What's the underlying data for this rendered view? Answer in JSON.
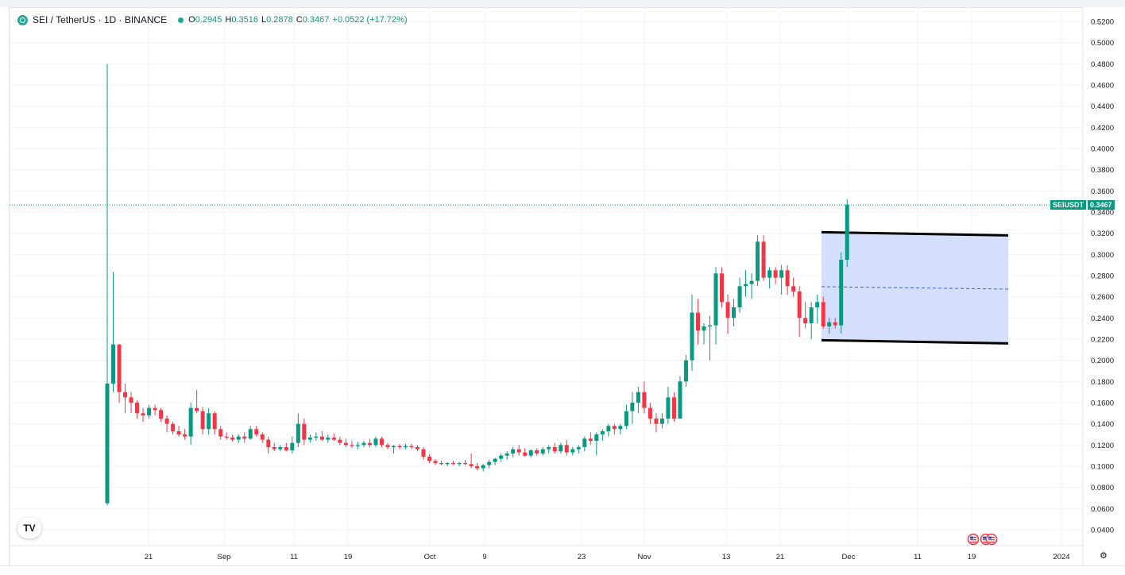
{
  "legend": {
    "symbol": "SEI / TetherUS · 1D · BINANCE",
    "o_label": "O",
    "o": "0.2945",
    "h_label": "H",
    "h": "0.3516",
    "l_label": "L",
    "l": "0.2878",
    "c_label": "C",
    "c": "0.3467",
    "change": "+0.0522 (+17.72%)"
  },
  "price_tag": {
    "symbol": "SEIUSDT",
    "value": "0.3467"
  },
  "logo_text": "TV",
  "colors": {
    "up": "#089981",
    "down": "#f23645",
    "box": "#c9d7fb",
    "grid": "#f0f3fa"
  },
  "chart_data": {
    "type": "candlestick",
    "y_axis": {
      "ticks": [
        "0.5200",
        "0.5000",
        "0.4800",
        "0.4600",
        "0.4400",
        "0.4200",
        "0.4000",
        "0.3800",
        "0.3600",
        "0.3400",
        "0.3200",
        "0.3000",
        "0.2800",
        "0.2600",
        "0.2400",
        "0.2200",
        "0.2000",
        "0.1800",
        "0.1600",
        "0.1400",
        "0.1200",
        "0.1000",
        "0.0800",
        "0.0600",
        "0.0400"
      ],
      "range": [
        0.03,
        0.53
      ]
    },
    "x_axis": {
      "labels": [
        "21",
        "Sep",
        "11",
        "19",
        "Oct",
        "9",
        "23",
        "Nov",
        "13",
        "21",
        "Dec",
        "11",
        "19",
        "2024"
      ]
    },
    "current_price": 0.3467,
    "candles": [
      [
        0.065,
        0.48,
        0.063,
        0.178
      ],
      [
        0.178,
        0.283,
        0.17,
        0.215
      ],
      [
        0.215,
        0.215,
        0.16,
        0.17
      ],
      [
        0.17,
        0.178,
        0.15,
        0.165
      ],
      [
        0.165,
        0.17,
        0.15,
        0.16
      ],
      [
        0.16,
        0.162,
        0.145,
        0.15
      ],
      [
        0.15,
        0.155,
        0.142,
        0.148
      ],
      [
        0.148,
        0.158,
        0.145,
        0.155
      ],
      [
        0.155,
        0.158,
        0.148,
        0.153
      ],
      [
        0.153,
        0.155,
        0.142,
        0.145
      ],
      [
        0.145,
        0.148,
        0.132,
        0.14
      ],
      [
        0.14,
        0.142,
        0.13,
        0.133
      ],
      [
        0.133,
        0.138,
        0.128,
        0.13
      ],
      [
        0.13,
        0.135,
        0.125,
        0.128
      ],
      [
        0.128,
        0.16,
        0.12,
        0.155
      ],
      [
        0.155,
        0.172,
        0.15,
        0.152
      ],
      [
        0.152,
        0.156,
        0.13,
        0.135
      ],
      [
        0.135,
        0.155,
        0.13,
        0.15
      ],
      [
        0.15,
        0.152,
        0.13,
        0.135
      ],
      [
        0.135,
        0.138,
        0.125,
        0.128
      ],
      [
        0.128,
        0.132,
        0.125,
        0.127
      ],
      [
        0.127,
        0.13,
        0.123,
        0.125
      ],
      [
        0.125,
        0.13,
        0.122,
        0.128
      ],
      [
        0.128,
        0.132,
        0.122,
        0.126
      ],
      [
        0.126,
        0.138,
        0.125,
        0.135
      ],
      [
        0.135,
        0.138,
        0.128,
        0.13
      ],
      [
        0.13,
        0.132,
        0.122,
        0.125
      ],
      [
        0.125,
        0.128,
        0.112,
        0.118
      ],
      [
        0.118,
        0.122,
        0.114,
        0.116
      ],
      [
        0.116,
        0.12,
        0.114,
        0.118
      ],
      [
        0.118,
        0.122,
        0.114,
        0.115
      ],
      [
        0.115,
        0.128,
        0.112,
        0.122
      ],
      [
        0.122,
        0.15,
        0.118,
        0.14
      ],
      [
        0.14,
        0.145,
        0.12,
        0.125
      ],
      [
        0.125,
        0.13,
        0.122,
        0.127
      ],
      [
        0.127,
        0.132,
        0.124,
        0.128
      ],
      [
        0.128,
        0.133,
        0.124,
        0.125
      ],
      [
        0.125,
        0.13,
        0.122,
        0.127
      ],
      [
        0.127,
        0.131,
        0.124,
        0.125
      ],
      [
        0.125,
        0.128,
        0.12,
        0.122
      ],
      [
        0.122,
        0.126,
        0.118,
        0.12
      ],
      [
        0.12,
        0.124,
        0.117,
        0.119
      ],
      [
        0.119,
        0.123,
        0.116,
        0.12
      ],
      [
        0.12,
        0.124,
        0.118,
        0.122
      ],
      [
        0.122,
        0.126,
        0.118,
        0.12
      ],
      [
        0.12,
        0.128,
        0.118,
        0.126
      ],
      [
        0.126,
        0.128,
        0.118,
        0.12
      ],
      [
        0.12,
        0.122,
        0.116,
        0.118
      ],
      [
        0.118,
        0.12,
        0.112,
        0.119
      ],
      [
        0.119,
        0.121,
        0.116,
        0.118
      ],
      [
        0.118,
        0.121,
        0.116,
        0.119
      ],
      [
        0.119,
        0.121,
        0.116,
        0.118
      ],
      [
        0.118,
        0.12,
        0.114,
        0.116
      ],
      [
        0.116,
        0.118,
        0.106,
        0.109
      ],
      [
        0.109,
        0.111,
        0.103,
        0.105
      ],
      [
        0.105,
        0.107,
        0.101,
        0.103
      ],
      [
        0.103,
        0.105,
        0.101,
        0.102
      ],
      [
        0.102,
        0.104,
        0.1,
        0.103
      ],
      [
        0.103,
        0.105,
        0.101,
        0.102
      ],
      [
        0.102,
        0.104,
        0.1,
        0.103
      ],
      [
        0.103,
        0.106,
        0.101,
        0.102
      ],
      [
        0.102,
        0.112,
        0.098,
        0.1
      ],
      [
        0.1,
        0.103,
        0.096,
        0.098
      ],
      [
        0.098,
        0.102,
        0.095,
        0.101
      ],
      [
        0.101,
        0.106,
        0.098,
        0.104
      ],
      [
        0.104,
        0.108,
        0.101,
        0.107
      ],
      [
        0.107,
        0.112,
        0.104,
        0.11
      ],
      [
        0.11,
        0.114,
        0.106,
        0.112
      ],
      [
        0.112,
        0.118,
        0.108,
        0.116
      ],
      [
        0.116,
        0.12,
        0.11,
        0.113
      ],
      [
        0.113,
        0.117,
        0.109,
        0.11
      ],
      [
        0.11,
        0.116,
        0.108,
        0.115
      ],
      [
        0.115,
        0.117,
        0.11,
        0.112
      ],
      [
        0.112,
        0.118,
        0.11,
        0.116
      ],
      [
        0.116,
        0.12,
        0.112,
        0.118
      ],
      [
        0.118,
        0.122,
        0.112,
        0.114
      ],
      [
        0.114,
        0.122,
        0.112,
        0.12
      ],
      [
        0.12,
        0.125,
        0.11,
        0.113
      ],
      [
        0.113,
        0.118,
        0.11,
        0.116
      ],
      [
        0.116,
        0.12,
        0.112,
        0.118
      ],
      [
        0.118,
        0.128,
        0.114,
        0.126
      ],
      [
        0.126,
        0.132,
        0.12,
        0.124
      ],
      [
        0.124,
        0.132,
        0.11,
        0.13
      ],
      [
        0.13,
        0.135,
        0.124,
        0.133
      ],
      [
        0.133,
        0.14,
        0.128,
        0.138
      ],
      [
        0.138,
        0.14,
        0.13,
        0.135
      ],
      [
        0.135,
        0.14,
        0.13,
        0.138
      ],
      [
        0.138,
        0.158,
        0.135,
        0.152
      ],
      [
        0.152,
        0.17,
        0.14,
        0.16
      ],
      [
        0.16,
        0.175,
        0.15,
        0.17
      ],
      [
        0.17,
        0.18,
        0.15,
        0.155
      ],
      [
        0.155,
        0.16,
        0.14,
        0.145
      ],
      [
        0.145,
        0.15,
        0.132,
        0.14
      ],
      [
        0.14,
        0.15,
        0.136,
        0.145
      ],
      [
        0.145,
        0.175,
        0.14,
        0.165
      ],
      [
        0.165,
        0.17,
        0.142,
        0.145
      ],
      [
        0.145,
        0.185,
        0.145,
        0.18
      ],
      [
        0.18,
        0.205,
        0.175,
        0.2
      ],
      [
        0.2,
        0.262,
        0.19,
        0.245
      ],
      [
        0.245,
        0.258,
        0.215,
        0.228
      ],
      [
        0.228,
        0.235,
        0.215,
        0.232
      ],
      [
        0.232,
        0.242,
        0.2,
        0.233
      ],
      [
        0.233,
        0.288,
        0.215,
        0.282
      ],
      [
        0.282,
        0.288,
        0.25,
        0.255
      ],
      [
        0.255,
        0.262,
        0.225,
        0.24
      ],
      [
        0.24,
        0.258,
        0.232,
        0.25
      ],
      [
        0.25,
        0.278,
        0.245,
        0.27
      ],
      [
        0.27,
        0.285,
        0.26,
        0.272
      ],
      [
        0.272,
        0.282,
        0.258,
        0.275
      ],
      [
        0.275,
        0.318,
        0.27,
        0.312
      ],
      [
        0.312,
        0.318,
        0.275,
        0.278
      ],
      [
        0.278,
        0.288,
        0.268,
        0.285
      ],
      [
        0.285,
        0.288,
        0.272,
        0.278
      ],
      [
        0.278,
        0.29,
        0.262,
        0.285
      ],
      [
        0.285,
        0.29,
        0.262,
        0.27
      ],
      [
        0.27,
        0.278,
        0.26,
        0.265
      ],
      [
        0.265,
        0.27,
        0.222,
        0.24
      ],
      [
        0.24,
        0.255,
        0.23,
        0.235
      ],
      [
        0.235,
        0.255,
        0.22,
        0.25
      ],
      [
        0.25,
        0.262,
        0.235,
        0.255
      ],
      [
        0.255,
        0.26,
        0.23,
        0.232
      ],
      [
        0.232,
        0.24,
        0.225,
        0.236
      ],
      [
        0.236,
        0.24,
        0.23,
        0.233
      ],
      [
        0.233,
        0.302,
        0.225,
        0.295
      ],
      [
        0.295,
        0.352,
        0.288,
        0.347
      ]
    ],
    "annotation": {
      "type": "rectangle",
      "top": [
        0.321,
        0.318
      ],
      "bottom": [
        0.219,
        0.216
      ],
      "mid": 0.268
    }
  }
}
